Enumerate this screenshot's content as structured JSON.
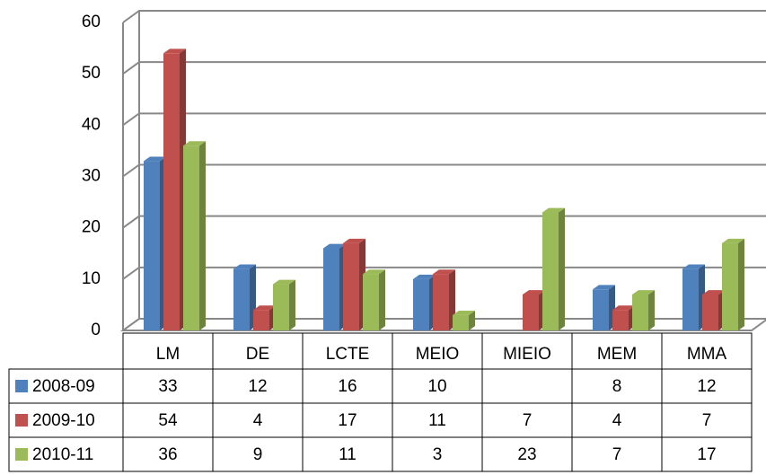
{
  "chart_data": {
    "type": "bar",
    "categories": [
      "LM",
      "DE",
      "LCTE",
      "MEIO",
      "MIEIO",
      "MEM",
      "MMA"
    ],
    "series": [
      {
        "name": "2008-09",
        "color": "#4f81bd",
        "values": [
          33,
          12,
          16,
          10,
          null,
          8,
          12
        ]
      },
      {
        "name": "2009-10",
        "color": "#c0504d",
        "values": [
          54,
          4,
          17,
          11,
          7,
          4,
          7
        ]
      },
      {
        "name": "2010-11",
        "color": "#9bbb59",
        "values": [
          36,
          9,
          11,
          3,
          23,
          7,
          17
        ]
      }
    ],
    "ylim": [
      0,
      60
    ],
    "yticks": [
      0,
      10,
      20,
      30,
      40,
      50,
      60
    ],
    "grid": true,
    "data_table": true
  }
}
